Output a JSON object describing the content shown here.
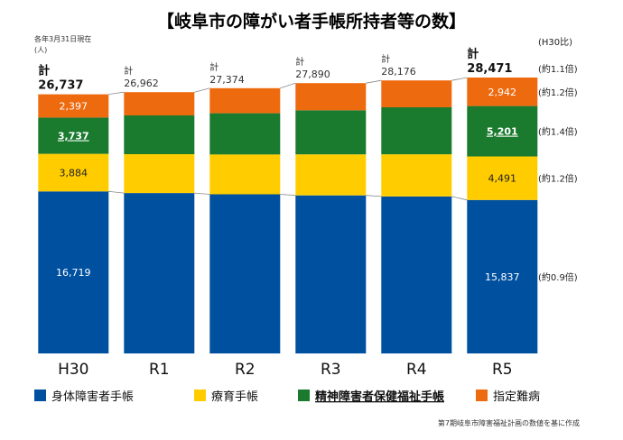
{
  "title": "【岐阜市の障がい者手帳所持者等の数】",
  "note_date": "各年3月31日現在",
  "note_unit": "(人)",
  "ratio_header": "(H30比)",
  "source": "第7期岐阜市障害福祉計画の数値を基に作成",
  "total_prefix": "計",
  "chart_data": {
    "type": "bar",
    "stacked": true,
    "categories": [
      "H30",
      "R1",
      "R2",
      "R3",
      "R4",
      "R5"
    ],
    "series": [
      {
        "name": "身体障害者手帳",
        "color": "#0050a0",
        "values": [
          16719,
          16550,
          16420,
          16310,
          16200,
          15837
        ]
      },
      {
        "name": "療育手帳",
        "color": "#ffcc00",
        "values": [
          3884,
          4010,
          4120,
          4230,
          4350,
          4491
        ]
      },
      {
        "name": "精神障害者保健福祉手帳",
        "color": "#1a7a2e",
        "values": [
          3737,
          4000,
          4250,
          4550,
          4850,
          5201
        ]
      },
      {
        "name": "指定難病",
        "color": "#ee6a0e",
        "values": [
          2397,
          2402,
          2584,
          2800,
          2776,
          2942
        ]
      }
    ],
    "totals": [
      26737,
      26962,
      27374,
      27890,
      28176,
      28471
    ],
    "total_labels": [
      "26,737",
      "26,962",
      "27,374",
      "27,890",
      "28,176",
      "28,471"
    ],
    "segment_labels": {
      "H30": [
        "16,719",
        "3,884",
        "3,737",
        "2,397"
      ],
      "R5": [
        "15,837",
        "4,491",
        "5,201",
        "2,942"
      ]
    },
    "ratios": [
      "(約0.9倍)",
      "(約1.2倍)",
      "(約1.4倍)",
      "(約1.2倍)"
    ],
    "total_ratio": "(約1.1倍)",
    "ylim": [
      0,
      28471
    ],
    "grid": false,
    "legend_position": "bottom"
  }
}
